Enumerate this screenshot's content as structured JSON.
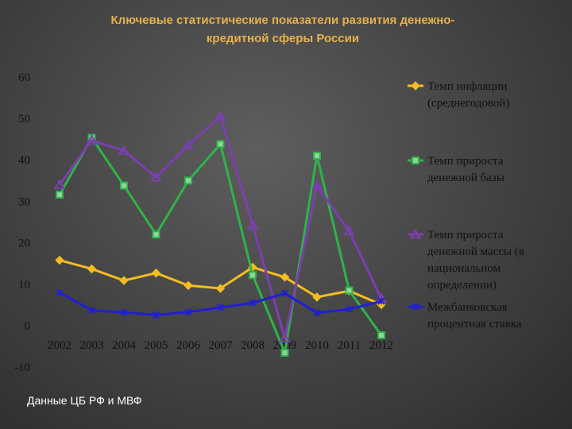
{
  "title_line1": "Ключевые статистические показатели развития денежно-",
  "title_line2": "кредитной сферы России",
  "source": "Данные ЦБ РФ и МВФ",
  "chart_data": {
    "type": "line",
    "title": "Ключевые статистические показатели развития денежно-кредитной сферы России",
    "categories": [
      "2002",
      "2003",
      "2004",
      "2005",
      "2006",
      "2007",
      "2008",
      "2009",
      "2010",
      "2011",
      "2012"
    ],
    "ylim": [
      -10,
      60
    ],
    "yticks": [
      "-10",
      "0",
      "10",
      "20",
      "30",
      "40",
      "50",
      "60"
    ],
    "series": [
      {
        "name": "Темп инфляции (среднегодовой)",
        "legend_lines": [
          "Темп инфляции",
          "(среднегодовой)"
        ],
        "color": "#f5bd1f",
        "marker": "diamond",
        "values": [
          15.8,
          13.7,
          10.9,
          12.7,
          9.7,
          9.0,
          14.1,
          11.7,
          6.9,
          8.4,
          5.1
        ]
      },
      {
        "name": "Темп прироста денежной базы",
        "legend_lines": [
          "Темп прироста",
          "денежной базы"
        ],
        "color": "#2fb34a",
        "marker": "square",
        "values": [
          31.6,
          45.3,
          33.8,
          22.0,
          35.0,
          43.8,
          12.2,
          -6.5,
          41.0,
          8.5,
          -2.3
        ]
      },
      {
        "name": "Темп прироста денежной массы (в национальном определении)",
        "legend_lines": [
          "Темп прироста",
          "денежной массы (в",
          "национальном",
          "определении)"
        ],
        "color": "#7d3fb0",
        "marker": "triangle",
        "values": [
          34.0,
          44.7,
          42.2,
          35.8,
          43.5,
          50.5,
          24.3,
          -3.0,
          33.8,
          22.8,
          6.5
        ]
      },
      {
        "name": "Межбанковская процентная ставка",
        "legend_lines": [
          "Межбанковская",
          "процентная ставка"
        ],
        "color": "#1f1fd6",
        "marker": "star",
        "values": [
          8.0,
          3.7,
          3.2,
          2.6,
          3.3,
          4.4,
          5.5,
          7.8,
          3.1,
          4.0,
          5.9
        ]
      }
    ]
  }
}
